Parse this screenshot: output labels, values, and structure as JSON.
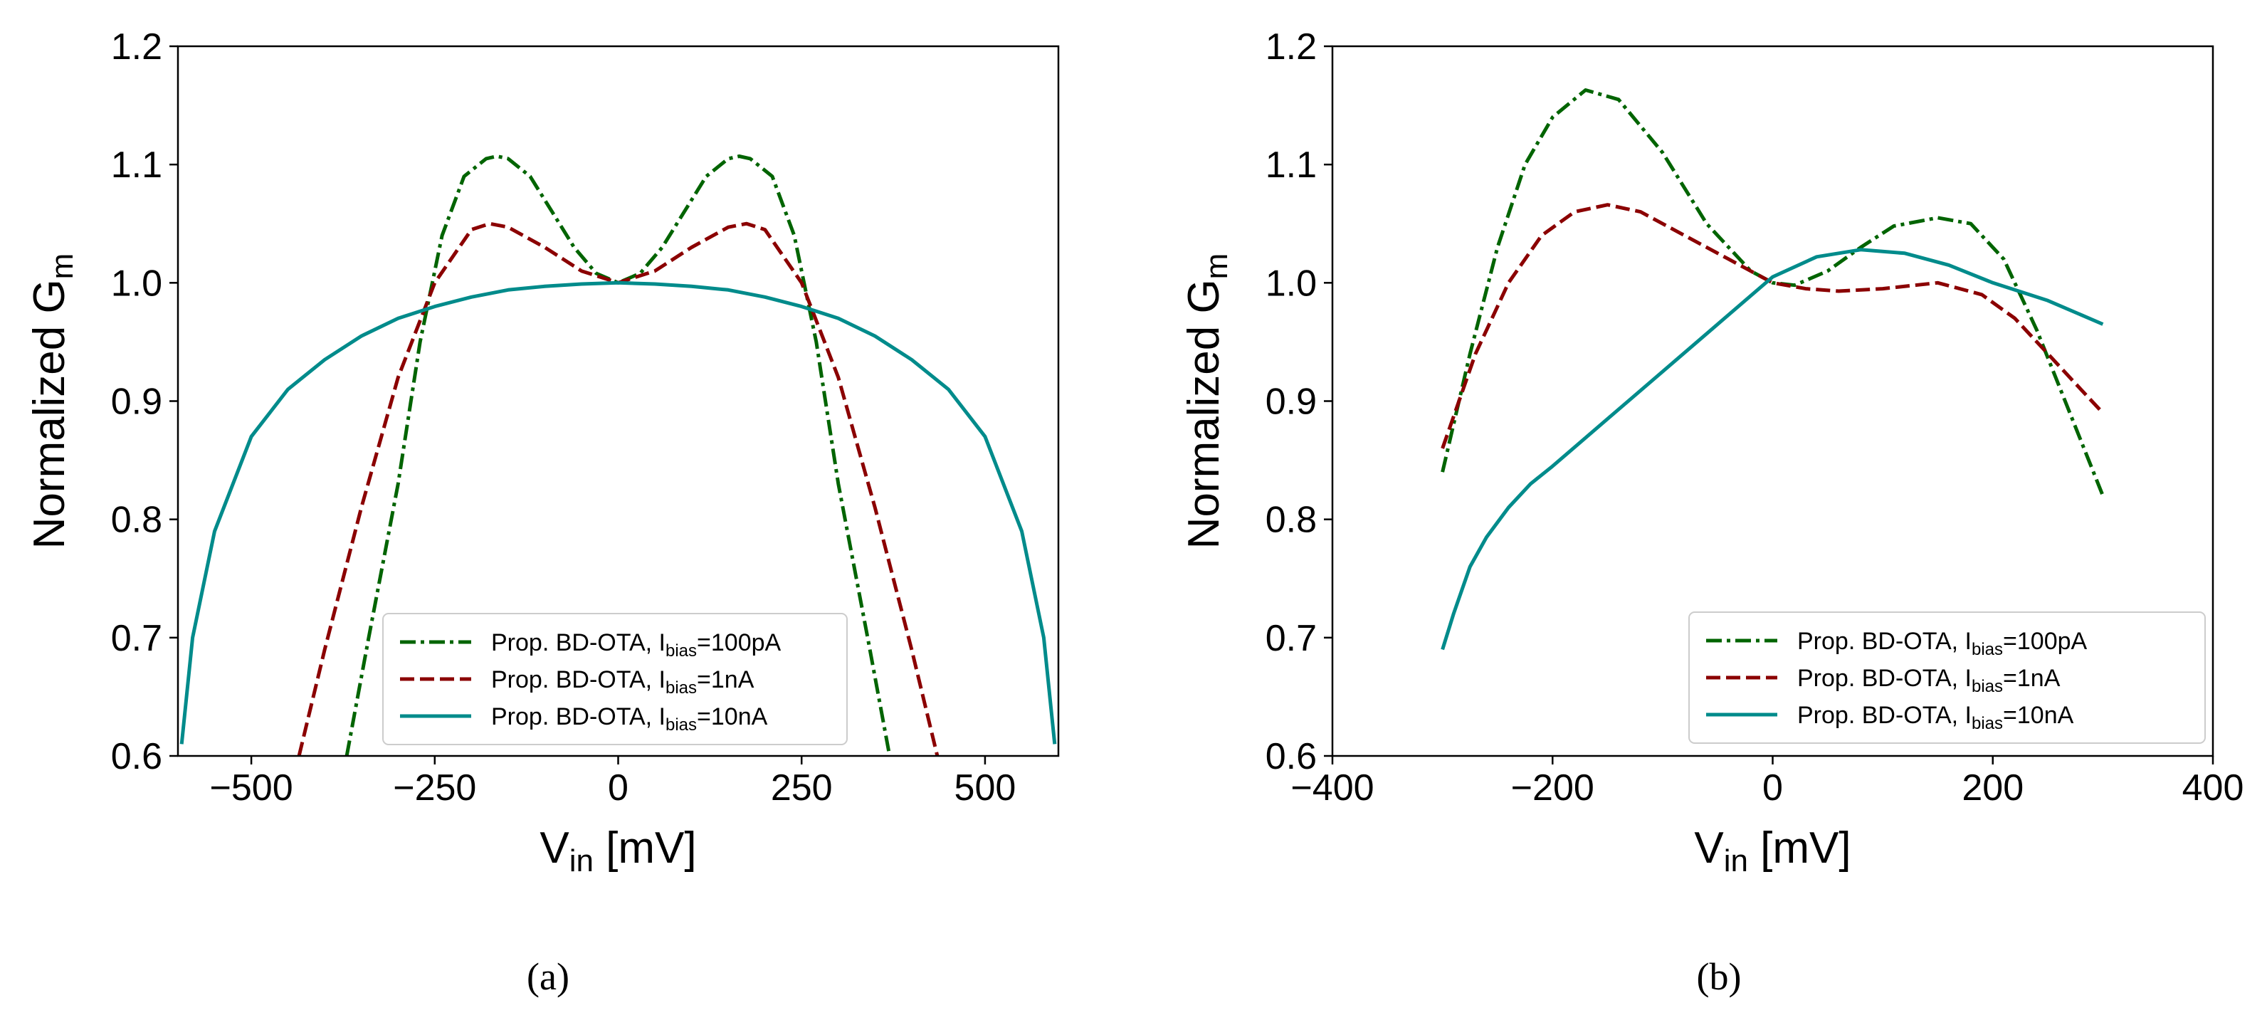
{
  "chart_data": [
    {
      "type": "line",
      "caption": "(a)",
      "xlabel": "V",
      "xlabel_sub": "in",
      "xlabel_suffix": " [mV]",
      "ylabel": "Normalized G",
      "ylabel_sub": "m",
      "xlim": [
        -600,
        600
      ],
      "ylim": [
        0.6,
        1.2
      ],
      "xticks": [
        -500,
        -250,
        0,
        250,
        500
      ],
      "xtick_labels": [
        "−500",
        "−250",
        "0",
        "250",
        "500"
      ],
      "yticks": [
        0.6,
        0.7,
        0.8,
        0.9,
        1.0,
        1.1,
        1.2
      ],
      "ytick_labels": [
        "0.6",
        "0.7",
        "0.8",
        "0.9",
        "1.0",
        "1.1",
        "1.2"
      ],
      "legend_position": "lower-center",
      "series": [
        {
          "name": "Prop. BD-OTA, Ibias=100pA",
          "label_prefix": "Prop. BD-OTA, I",
          "label_sub": "bias",
          "label_suffix": "=100pA",
          "color": "#006400",
          "style": "dashdot",
          "x": [
            -370,
            -340,
            -300,
            -270,
            -240,
            -210,
            -180,
            -165,
            -150,
            -120,
            -90,
            -60,
            -30,
            0,
            30,
            60,
            90,
            120,
            150,
            165,
            180,
            210,
            240,
            270,
            300,
            340,
            370
          ],
          "y": [
            0.6,
            0.7,
            0.83,
            0.95,
            1.04,
            1.09,
            1.105,
            1.107,
            1.105,
            1.09,
            1.06,
            1.03,
            1.008,
            1.0,
            1.008,
            1.03,
            1.06,
            1.09,
            1.105,
            1.107,
            1.105,
            1.09,
            1.04,
            0.95,
            0.83,
            0.7,
            0.6
          ]
        },
        {
          "name": "Prop. BD-OTA, Ibias=1nA",
          "label_prefix": "Prop. BD-OTA, I",
          "label_sub": "bias",
          "label_suffix": "=1nA",
          "color": "#8b0000",
          "style": "dashed",
          "x": [
            -435,
            -400,
            -350,
            -300,
            -250,
            -200,
            -175,
            -150,
            -100,
            -50,
            0,
            50,
            100,
            150,
            175,
            200,
            250,
            300,
            350,
            400,
            435
          ],
          "y": [
            0.6,
            0.69,
            0.81,
            0.92,
            1.0,
            1.045,
            1.05,
            1.047,
            1.03,
            1.01,
            1.0,
            1.01,
            1.03,
            1.047,
            1.05,
            1.045,
            1.0,
            0.92,
            0.81,
            0.69,
            0.6
          ]
        },
        {
          "name": "Prop. BD-OTA, Ibias=10nA",
          "label_prefix": "Prop. BD-OTA, I",
          "label_sub": "bias",
          "label_suffix": "=10nA",
          "color": "#008b8b",
          "style": "solid",
          "x": [
            -595,
            -580,
            -550,
            -500,
            -450,
            -400,
            -350,
            -300,
            -250,
            -200,
            -150,
            -100,
            -50,
            0,
            50,
            100,
            150,
            200,
            250,
            300,
            350,
            400,
            450,
            500,
            550,
            580,
            595
          ],
          "y": [
            0.61,
            0.7,
            0.79,
            0.87,
            0.91,
            0.935,
            0.955,
            0.97,
            0.98,
            0.988,
            0.994,
            0.997,
            0.999,
            1.0,
            0.999,
            0.997,
            0.994,
            0.988,
            0.98,
            0.97,
            0.955,
            0.935,
            0.91,
            0.87,
            0.79,
            0.7,
            0.61
          ]
        }
      ]
    },
    {
      "type": "line",
      "caption": "(b)",
      "xlabel": "V",
      "xlabel_sub": "in",
      "xlabel_suffix": " [mV]",
      "ylabel": "Normalized G",
      "ylabel_sub": "m",
      "xlim": [
        -400,
        400
      ],
      "ylim": [
        0.6,
        1.2
      ],
      "xticks": [
        -400,
        -200,
        0,
        200,
        400
      ],
      "xtick_labels": [
        "−400",
        "−200",
        "0",
        "200",
        "400"
      ],
      "yticks": [
        0.6,
        0.7,
        0.8,
        0.9,
        1.0,
        1.1,
        1.2
      ],
      "ytick_labels": [
        "0.6",
        "0.7",
        "0.8",
        "0.9",
        "1.0",
        "1.1",
        "1.2"
      ],
      "legend_position": "lower-right",
      "series": [
        {
          "name": "Prop. BD-OTA, Ibias=100pA",
          "label_prefix": "Prop. BD-OTA, I",
          "label_sub": "bias",
          "label_suffix": "=100pA",
          "color": "#006400",
          "style": "dashdot",
          "x": [
            -300,
            -275,
            -250,
            -225,
            -200,
            -170,
            -140,
            -100,
            -60,
            -20,
            0,
            20,
            50,
            80,
            110,
            150,
            180,
            210,
            240,
            270,
            300
          ],
          "y": [
            0.84,
            0.94,
            1.03,
            1.1,
            1.14,
            1.163,
            1.155,
            1.11,
            1.05,
            1.01,
            1.0,
            0.998,
            1.01,
            1.03,
            1.048,
            1.055,
            1.05,
            1.02,
            0.96,
            0.89,
            0.82
          ]
        },
        {
          "name": "Prop. BD-OTA, Ibias=1nA",
          "label_prefix": "Prop. BD-OTA, I",
          "label_sub": "bias",
          "label_suffix": "=1nA",
          "color": "#8b0000",
          "style": "dashed",
          "x": [
            -300,
            -270,
            -240,
            -210,
            -180,
            -150,
            -120,
            -80,
            -40,
            0,
            30,
            60,
            100,
            150,
            190,
            220,
            250,
            280,
            300
          ],
          "y": [
            0.86,
            0.94,
            1.0,
            1.04,
            1.06,
            1.066,
            1.06,
            1.04,
            1.02,
            1.0,
            0.995,
            0.993,
            0.995,
            1.0,
            0.99,
            0.97,
            0.94,
            0.91,
            0.89
          ]
        },
        {
          "name": "Prop. BD-OTA, Ibias=10nA",
          "label_prefix": "Prop. BD-OTA, I",
          "label_sub": "bias",
          "label_suffix": "=10nA",
          "color": "#008b8b",
          "style": "solid",
          "x": [
            -300,
            -290,
            -275,
            -260,
            -240,
            -220,
            -200,
            -150,
            -100,
            -50,
            0,
            40,
            80,
            120,
            160,
            200,
            250,
            300
          ],
          "y": [
            0.69,
            0.72,
            0.76,
            0.785,
            0.81,
            0.83,
            0.845,
            0.885,
            0.925,
            0.965,
            1.005,
            1.022,
            1.028,
            1.025,
            1.015,
            1.0,
            0.985,
            0.965
          ]
        }
      ]
    }
  ]
}
